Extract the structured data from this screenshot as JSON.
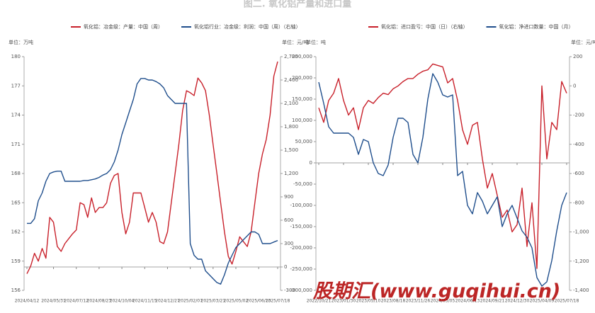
{
  "title": "图二. 氧化铝产量和进口量",
  "watermark": "股期汇(www.guqihui.cn)",
  "chart_data": [
    {
      "type": "line",
      "y_unit_label": "单位：万吨",
      "y2_unit_label": "单位：元/吨",
      "categories": [
        "2024/04/12",
        null,
        null,
        null,
        null,
        null,
        null,
        "2024/05/31",
        null,
        null,
        null,
        null,
        null,
        "2024/07/12",
        null,
        null,
        null,
        null,
        null,
        "2024/08/23",
        null,
        null,
        null,
        null,
        null,
        "2024/10/04",
        null,
        null,
        null,
        null,
        null,
        "2024/11/15",
        null,
        null,
        null,
        null,
        null,
        "2024/12/27",
        null,
        null,
        null,
        null,
        null,
        "2025/02/07",
        null,
        null,
        null,
        null,
        null,
        "2025/03/21",
        null,
        null,
        null,
        null,
        null,
        "2025/05/02",
        null,
        null,
        null,
        null,
        null,
        "2025/06/13",
        null,
        null,
        null,
        null,
        "2025/07/18"
      ],
      "series": [
        {
          "name": "氧化铝：冶金级：产量：中国（周）",
          "color": "#c8202a",
          "values": [
            157.7,
            158.5,
            159.8,
            159,
            160.3,
            159.3,
            163.5,
            163,
            160.5,
            160,
            160.8,
            161.3,
            161.8,
            162.2,
            165,
            164.8,
            163.5,
            165.5,
            164,
            164.5,
            164.5,
            165,
            167,
            167.8,
            168,
            164,
            161.8,
            163,
            166,
            166,
            166,
            164.5,
            163,
            164,
            163,
            161,
            160.8,
            162,
            165,
            168,
            171,
            174.5,
            176.5,
            176.3,
            176,
            177.8,
            177.3,
            176.5,
            174,
            171,
            168,
            165,
            162,
            159.5,
            158.7,
            160,
            161.5,
            161,
            160.5,
            162,
            165,
            168,
            170,
            171.5,
            174,
            178,
            179.5
          ]
        },
        {
          "name": "氧化铝行业：冶金级：利润：中国（周）（右轴）",
          "color": "#1f4e8c",
          "axis": "y2",
          "values": [
            560,
            560,
            620,
            850,
            950,
            1100,
            1200,
            1220,
            1230,
            1230,
            1100,
            1100,
            1100,
            1100,
            1100,
            1110,
            1110,
            1120,
            1130,
            1150,
            1180,
            1200,
            1250,
            1350,
            1500,
            1700,
            1850,
            2000,
            2150,
            2350,
            2420,
            2420,
            2400,
            2400,
            2380,
            2350,
            2300,
            2200,
            2150,
            2100,
            2100,
            2100,
            2100,
            300,
            150,
            100,
            100,
            -50,
            -100,
            -150,
            -200,
            -220,
            -100,
            50,
            150,
            250,
            300,
            350,
            400,
            450,
            450,
            420,
            300,
            300,
            300,
            320,
            340
          ]
        }
      ],
      "ylim": [
        156,
        180
      ],
      "yticks": [
        156,
        159,
        162,
        165,
        168,
        171,
        174,
        177,
        180
      ],
      "y2lim": [
        -300,
        2700
      ],
      "y2ticks": [
        -300,
        0,
        300,
        600,
        900,
        {
          "value": 1200,
          "label": "1,200"
        },
        {
          "value": 1500,
          "label": "1,500"
        },
        {
          "value": 1800,
          "label": "1,800"
        },
        {
          "value": 2100,
          "label": "2,100"
        },
        {
          "value": 2400,
          "label": "2,400"
        },
        {
          "value": 2700,
          "label": "2,700"
        }
      ],
      "legend": "top"
    },
    {
      "type": "line",
      "y_unit_label": "单位：吨",
      "y2_unit_label": "单位：元/吨",
      "categories": [
        "2022/10/21",
        null,
        null,
        null,
        null,
        "2023/01/30",
        null,
        null,
        null,
        null,
        "2023/05/10",
        null,
        null,
        null,
        null,
        "2023/08/18",
        null,
        null,
        null,
        null,
        "2023/11/26",
        null,
        null,
        null,
        null,
        "2024/03/05",
        null,
        null,
        null,
        null,
        "2024/06/13",
        null,
        null,
        null,
        null,
        "2024/09/21",
        null,
        null,
        null,
        null,
        "2024/12/30",
        null,
        null,
        null,
        null,
        "2025/04/09",
        null,
        null,
        null,
        null,
        "2025/07/18"
      ],
      "series": [
        {
          "name": "氧化铝：进口盈亏：中国（日）（右轴）",
          "color": "#c8202a",
          "axis": "y2",
          "values": [
            -150,
            -250,
            -100,
            -50,
            50,
            -100,
            -200,
            -150,
            -300,
            -150,
            -100,
            -120,
            -80,
            -50,
            -60,
            -20,
            0,
            30,
            50,
            50,
            80,
            100,
            110,
            150,
            140,
            130,
            20,
            50,
            -100,
            -300,
            -400,
            -270,
            -250,
            -500,
            -700,
            -600,
            -750,
            -900,
            -850,
            -1000,
            -950,
            -700,
            -1100,
            -800,
            -1250,
            0,
            -500,
            -250,
            -300,
            30,
            -50
          ]
        },
        {
          "name": "氧化铝：净进口数量：中国（月）",
          "color": "#1f4e8c",
          "values": [
            190000,
            140000,
            85000,
            70000,
            70000,
            70000,
            70000,
            60000,
            20000,
            55000,
            50000,
            0,
            -25000,
            -30000,
            -5000,
            60000,
            105000,
            105000,
            95000,
            20000,
            0,
            60000,
            150000,
            210000,
            190000,
            160000,
            155000,
            160000,
            -30000,
            -20000,
            -100000,
            -120000,
            -70000,
            -90000,
            -120000,
            -100000,
            -80000,
            -150000,
            -120000,
            -100000,
            -130000,
            -160000,
            -175000,
            -200000,
            -270000,
            -290000,
            -280000,
            -230000,
            -160000,
            -100000,
            -70000
          ]
        }
      ],
      "ylim": [
        -300000,
        250000
      ],
      "yticks": [
        {
          "value": -300000,
          "label": "-300,000"
        },
        {
          "value": -250000,
          "label": "-250,000"
        },
        {
          "value": -200000,
          "label": "-200,000"
        },
        {
          "value": -150000,
          "label": "-150,000"
        },
        {
          "value": -100000,
          "label": "-100,000"
        },
        {
          "value": -50000,
          "label": "-50,000"
        },
        0,
        {
          "value": 50000,
          "label": "50,000"
        },
        {
          "value": 100000,
          "label": "100,000"
        },
        {
          "value": 150000,
          "label": "150,000"
        },
        {
          "value": 200000,
          "label": "200,000"
        },
        {
          "value": 250000,
          "label": "250,000"
        }
      ],
      "y2lim": [
        -1400,
        200
      ],
      "y2ticks": [
        {
          "value": -1400,
          "label": "-1,400"
        },
        {
          "value": -1200,
          "label": "-1,200"
        },
        {
          "value": -1000,
          "label": "-1,000"
        },
        -800,
        -600,
        -400,
        -200,
        0,
        200
      ],
      "legend": "top"
    }
  ]
}
